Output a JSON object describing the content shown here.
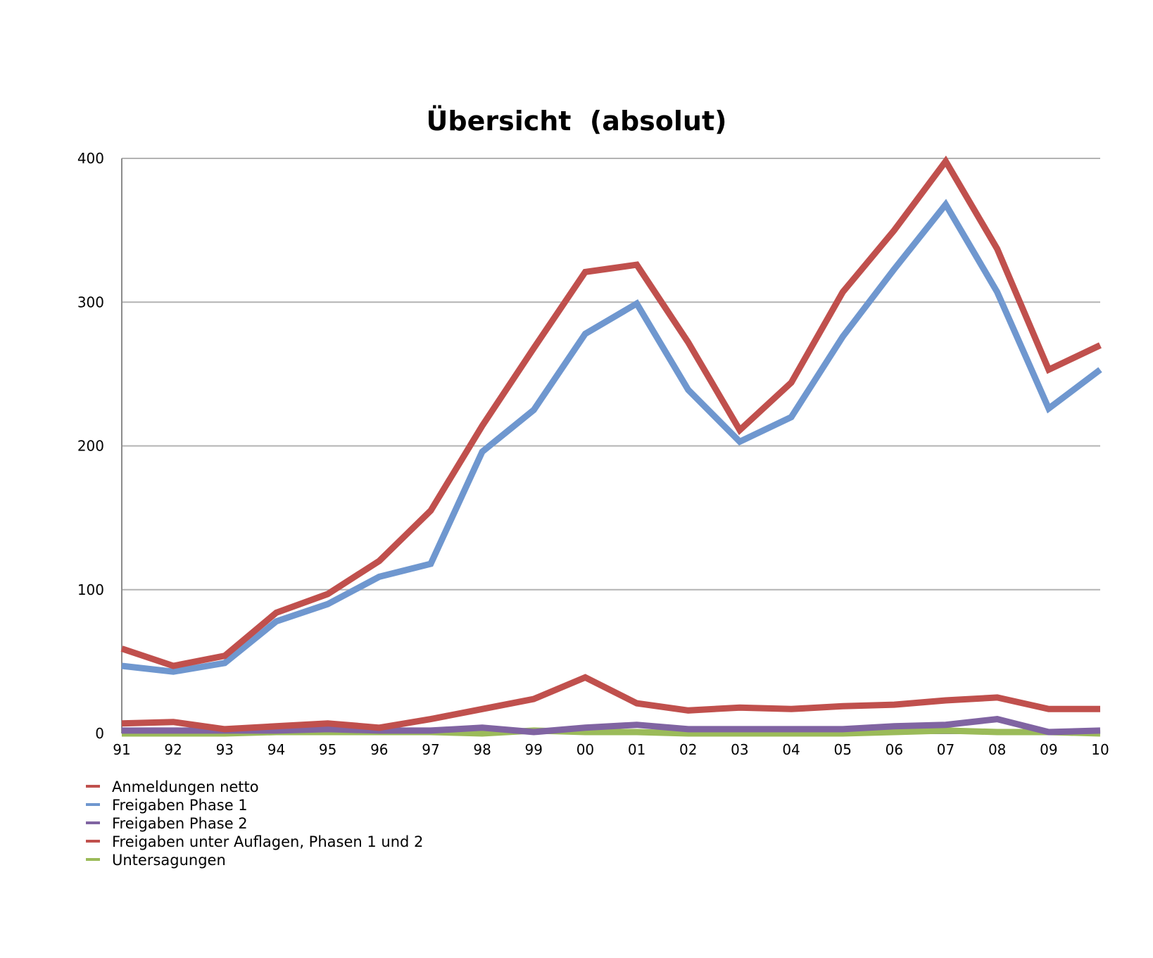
{
  "chart_data": {
    "type": "line",
    "title": "Übersicht  (absolut)",
    "xlabel": "",
    "ylabel": "",
    "ylim": [
      0,
      400
    ],
    "yticks": [
      "0",
      "100",
      "200",
      "300",
      "400"
    ],
    "categories": [
      "91",
      "92",
      "93",
      "94",
      "95",
      "96",
      "97",
      "98",
      "99",
      "00",
      "01",
      "02",
      "03",
      "04",
      "05",
      "06",
      "07",
      "08",
      "09",
      "10"
    ],
    "grid": true,
    "legend_position": "bottom-left",
    "series": [
      {
        "name": "Anmeldungen netto",
        "color": "#c0504d",
        "values": [
          59,
          47,
          54,
          84,
          97,
          120,
          155,
          214,
          268,
          321,
          326,
          272,
          211,
          244,
          307,
          350,
          398,
          337,
          253,
          270
        ]
      },
      {
        "name": "Freigaben Phase 1",
        "color": "#6f97cf",
        "values": [
          47,
          43,
          49,
          78,
          90,
          109,
          118,
          196,
          225,
          278,
          299,
          239,
          203,
          220,
          276,
          323,
          368,
          307,
          226,
          253
        ]
      },
      {
        "name": "Freigaben Phase 2",
        "color": "#8064a2",
        "values": [
          2,
          2,
          2,
          2,
          3,
          2,
          2,
          4,
          1,
          4,
          6,
          3,
          3,
          3,
          3,
          5,
          6,
          10,
          1,
          2
        ]
      },
      {
        "name": "Freigaben unter Auflagen, Phasen 1 und 2",
        "color": "#c0504d",
        "values": [
          7,
          8,
          3,
          5,
          7,
          4,
          10,
          17,
          24,
          39,
          21,
          16,
          18,
          17,
          19,
          20,
          23,
          25,
          17,
          17
        ]
      },
      {
        "name": "Untersagungen",
        "color": "#9bbb59",
        "values": [
          0,
          0,
          0,
          1,
          1,
          1,
          1,
          0,
          2,
          1,
          1,
          0,
          0,
          0,
          0,
          1,
          2,
          1,
          1,
          0
        ]
      }
    ]
  }
}
